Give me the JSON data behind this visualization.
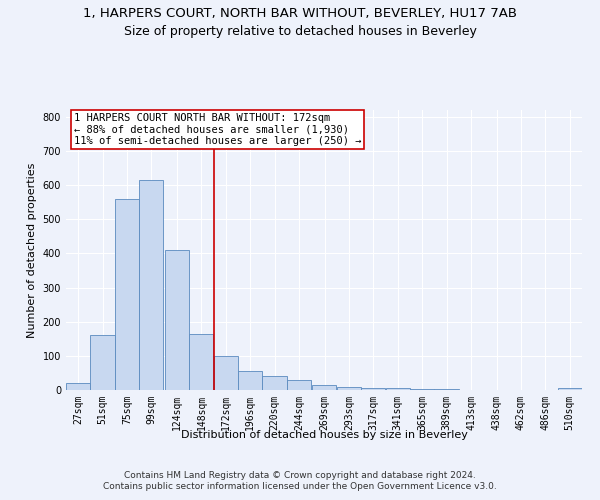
{
  "title": "1, HARPERS COURT, NORTH BAR WITHOUT, BEVERLEY, HU17 7AB",
  "subtitle": "Size of property relative to detached houses in Beverley",
  "xlabel": "Distribution of detached houses by size in Beverley",
  "ylabel": "Number of detached properties",
  "footer_line1": "Contains HM Land Registry data © Crown copyright and database right 2024.",
  "footer_line2": "Contains public sector information licensed under the Open Government Licence v3.0.",
  "property_label": "1 HARPERS COURT NORTH BAR WITHOUT: 172sqm",
  "annotation_line1": "← 88% of detached houses are smaller (1,930)",
  "annotation_line2": "11% of semi-detached houses are larger (250) →",
  "property_sqm": 172,
  "bin_labels": [
    "27sqm",
    "51sqm",
    "75sqm",
    "99sqm",
    "124sqm",
    "148sqm",
    "172sqm",
    "196sqm",
    "220sqm",
    "244sqm",
    "269sqm",
    "293sqm",
    "317sqm",
    "341sqm",
    "365sqm",
    "389sqm",
    "413sqm",
    "438sqm",
    "462sqm",
    "486sqm",
    "510sqm"
  ],
  "bin_edges": [
    27,
    51,
    75,
    99,
    124,
    148,
    172,
    196,
    220,
    244,
    269,
    293,
    317,
    341,
    365,
    389,
    413,
    438,
    462,
    486,
    510
  ],
  "bar_values": [
    20,
    160,
    560,
    615,
    410,
    165,
    100,
    55,
    42,
    30,
    15,
    10,
    7,
    5,
    3,
    2,
    0,
    0,
    0,
    0,
    5
  ],
  "bar_color": "#c8d8f0",
  "bar_edge_color": "#5a8abf",
  "highlight_line_color": "#cc0000",
  "annotation_box_edge_color": "#cc0000",
  "annotation_box_face_color": "#ffffff",
  "background_color": "#eef2fb",
  "ylim": [
    0,
    820
  ],
  "yticks": [
    0,
    100,
    200,
    300,
    400,
    500,
    600,
    700,
    800
  ],
  "grid_color": "#ffffff",
  "title_fontsize": 9.5,
  "subtitle_fontsize": 9,
  "axis_label_fontsize": 8,
  "tick_fontsize": 7,
  "annotation_fontsize": 7.5,
  "footer_fontsize": 6.5
}
